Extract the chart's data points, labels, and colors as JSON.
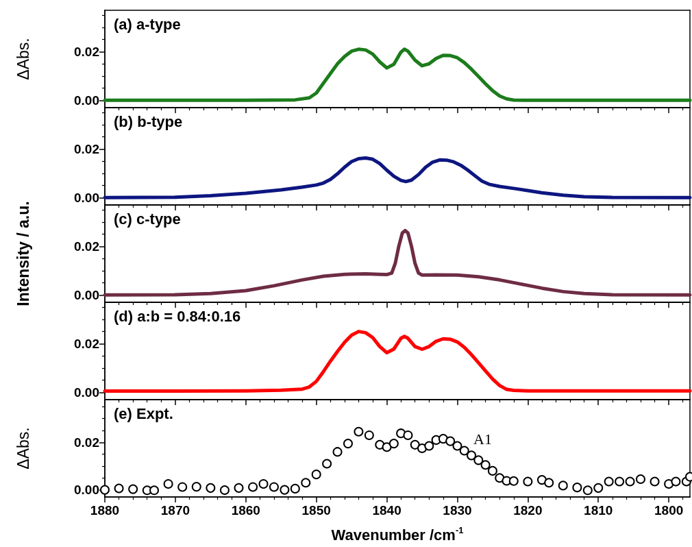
{
  "chart_data": [
    {
      "type": "line",
      "title": "(a) a-type",
      "ylabel": "ΔAbs.",
      "tick_labels": "y",
      "xlim": [
        1880,
        1797
      ],
      "ylim": [
        -0.003,
        0.037
      ],
      "xticks": [
        1880,
        1870,
        1860,
        1850,
        1840,
        1830,
        1820,
        1810,
        1800,
        {
          "value": 1878,
          "label": null
        },
        {
          "value": 1876,
          "label": null
        },
        {
          "value": 1874,
          "label": null
        },
        {
          "value": 1872,
          "label": null
        },
        {
          "value": 1868,
          "label": null
        },
        {
          "value": 1866,
          "label": null
        },
        {
          "value": 1864,
          "label": null
        },
        {
          "value": 1862,
          "label": null
        },
        {
          "value": 1858,
          "label": null
        },
        {
          "value": 1856,
          "label": null
        },
        {
          "value": 1854,
          "label": null
        },
        {
          "value": 1852,
          "label": null
        },
        {
          "value": 1848,
          "label": null
        },
        {
          "value": 1846,
          "label": null
        },
        {
          "value": 1844,
          "label": null
        },
        {
          "value": 1842,
          "label": null
        },
        {
          "value": 1838,
          "label": null
        },
        {
          "value": 1836,
          "label": null
        },
        {
          "value": 1834,
          "label": null
        },
        {
          "value": 1832,
          "label": null
        },
        {
          "value": 1828,
          "label": null
        },
        {
          "value": 1826,
          "label": null
        },
        {
          "value": 1824,
          "label": null
        },
        {
          "value": 1822,
          "label": null
        },
        {
          "value": 1818,
          "label": null
        },
        {
          "value": 1816,
          "label": null
        },
        {
          "value": 1814,
          "label": null
        },
        {
          "value": 1812,
          "label": null
        },
        {
          "value": 1808,
          "label": null
        },
        {
          "value": 1806,
          "label": null
        },
        {
          "value": 1804,
          "label": null
        },
        {
          "value": 1802,
          "label": null
        },
        {
          "value": 1798,
          "label": null
        }
      ],
      "yticks": [
        {
          "value": 0,
          "label": "0.00"
        },
        {
          "value": 0.02,
          "label": "0.02"
        },
        {
          "value": 0.005,
          "label": null
        },
        {
          "value": 0.01,
          "label": null
        },
        {
          "value": 0.015,
          "label": null
        },
        {
          "value": 0.025,
          "label": null
        },
        {
          "value": 0.03,
          "label": null
        },
        {
          "value": 0.035,
          "label": null
        }
      ],
      "x": [
        1880,
        1860,
        1853,
        1851,
        1850,
        1849,
        1848,
        1847,
        1846,
        1845,
        1844,
        1843,
        1842,
        1841,
        1840,
        1839,
        1838,
        1837.5,
        1837,
        1836,
        1835,
        1834,
        1833,
        1832,
        1831,
        1830,
        1829,
        1828,
        1827,
        1826,
        1825,
        1824,
        1823,
        1822,
        1820,
        1797
      ],
      "series": [
        {
          "color": "#1c7c1c",
          "values": [
            0,
            0,
            0.0002,
            0.001,
            0.003,
            0.007,
            0.011,
            0.015,
            0.018,
            0.0202,
            0.021,
            0.0207,
            0.019,
            0.0158,
            0.0133,
            0.0148,
            0.0198,
            0.021,
            0.0202,
            0.0165,
            0.0142,
            0.015,
            0.0172,
            0.0185,
            0.0184,
            0.0175,
            0.0155,
            0.0128,
            0.0098,
            0.0068,
            0.004,
            0.0018,
            0.0006,
            0.0001,
            0,
            0
          ]
        }
      ]
    },
    {
      "type": "line",
      "title": "(b) b-type",
      "tick_labels": "y",
      "xlim": [
        1880,
        1797
      ],
      "ylim": [
        -0.003,
        0.037
      ],
      "xticks": [
        1880,
        1870,
        1860,
        1850,
        1840,
        1830,
        1820,
        1810,
        1800,
        {
          "value": 1878,
          "label": null
        },
        {
          "value": 1876,
          "label": null
        },
        {
          "value": 1874,
          "label": null
        },
        {
          "value": 1872,
          "label": null
        },
        {
          "value": 1868,
          "label": null
        },
        {
          "value": 1866,
          "label": null
        },
        {
          "value": 1864,
          "label": null
        },
        {
          "value": 1862,
          "label": null
        },
        {
          "value": 1858,
          "label": null
        },
        {
          "value": 1856,
          "label": null
        },
        {
          "value": 1854,
          "label": null
        },
        {
          "value": 1852,
          "label": null
        },
        {
          "value": 1848,
          "label": null
        },
        {
          "value": 1846,
          "label": null
        },
        {
          "value": 1844,
          "label": null
        },
        {
          "value": 1842,
          "label": null
        },
        {
          "value": 1838,
          "label": null
        },
        {
          "value": 1836,
          "label": null
        },
        {
          "value": 1834,
          "label": null
        },
        {
          "value": 1832,
          "label": null
        },
        {
          "value": 1828,
          "label": null
        },
        {
          "value": 1826,
          "label": null
        },
        {
          "value": 1824,
          "label": null
        },
        {
          "value": 1822,
          "label": null
        },
        {
          "value": 1818,
          "label": null
        },
        {
          "value": 1816,
          "label": null
        },
        {
          "value": 1814,
          "label": null
        },
        {
          "value": 1812,
          "label": null
        },
        {
          "value": 1808,
          "label": null
        },
        {
          "value": 1806,
          "label": null
        },
        {
          "value": 1804,
          "label": null
        },
        {
          "value": 1802,
          "label": null
        },
        {
          "value": 1798,
          "label": null
        }
      ],
      "yticks": [
        {
          "value": 0,
          "label": "0.00"
        },
        {
          "value": 0.02,
          "label": "0.02"
        },
        {
          "value": 0.005,
          "label": null
        },
        {
          "value": 0.01,
          "label": null
        },
        {
          "value": 0.015,
          "label": null
        },
        {
          "value": 0.025,
          "label": null
        },
        {
          "value": 0.03,
          "label": null
        },
        {
          "value": 0.035,
          "label": null
        }
      ],
      "x": [
        1880,
        1870,
        1865,
        1860,
        1855,
        1852,
        1850,
        1849,
        1848,
        1847,
        1846,
        1845,
        1844,
        1843,
        1842,
        1841,
        1840,
        1839,
        1838,
        1837.3,
        1836.5,
        1835.5,
        1834.5,
        1833.5,
        1832.5,
        1831.5,
        1830.5,
        1829.5,
        1828.5,
        1827.5,
        1826.5,
        1825.5,
        1824,
        1822,
        1820,
        1818,
        1815,
        1812,
        1808,
        1797
      ],
      "series": [
        {
          "color": "#0d1680",
          "values": [
            0,
            0.0002,
            0.0008,
            0.0018,
            0.0032,
            0.0043,
            0.0052,
            0.006,
            0.0075,
            0.0098,
            0.0125,
            0.0148,
            0.016,
            0.0163,
            0.0158,
            0.014,
            0.0113,
            0.0088,
            0.0071,
            0.0066,
            0.0072,
            0.0095,
            0.0125,
            0.0146,
            0.0155,
            0.0154,
            0.0147,
            0.0133,
            0.0113,
            0.009,
            0.0068,
            0.0055,
            0.0046,
            0.0038,
            0.0029,
            0.002,
            0.001,
            0.0004,
            0.0001,
            0
          ]
        }
      ]
    },
    {
      "type": "line",
      "title": "(c) c-type",
      "ylabel": "Intensity / a.u.",
      "tick_labels": "y",
      "xlim": [
        1880,
        1797
      ],
      "ylim": [
        -0.003,
        0.037
      ],
      "xticks": [
        1880,
        1870,
        1860,
        1850,
        1840,
        1830,
        1820,
        1810,
        1800,
        {
          "value": 1878,
          "label": null
        },
        {
          "value": 1876,
          "label": null
        },
        {
          "value": 1874,
          "label": null
        },
        {
          "value": 1872,
          "label": null
        },
        {
          "value": 1868,
          "label": null
        },
        {
          "value": 1866,
          "label": null
        },
        {
          "value": 1864,
          "label": null
        },
        {
          "value": 1862,
          "label": null
        },
        {
          "value": 1858,
          "label": null
        },
        {
          "value": 1856,
          "label": null
        },
        {
          "value": 1854,
          "label": null
        },
        {
          "value": 1852,
          "label": null
        },
        {
          "value": 1848,
          "label": null
        },
        {
          "value": 1846,
          "label": null
        },
        {
          "value": 1844,
          "label": null
        },
        {
          "value": 1842,
          "label": null
        },
        {
          "value": 1838,
          "label": null
        },
        {
          "value": 1836,
          "label": null
        },
        {
          "value": 1834,
          "label": null
        },
        {
          "value": 1832,
          "label": null
        },
        {
          "value": 1828,
          "label": null
        },
        {
          "value": 1826,
          "label": null
        },
        {
          "value": 1824,
          "label": null
        },
        {
          "value": 1822,
          "label": null
        },
        {
          "value": 1818,
          "label": null
        },
        {
          "value": 1816,
          "label": null
        },
        {
          "value": 1814,
          "label": null
        },
        {
          "value": 1812,
          "label": null
        },
        {
          "value": 1808,
          "label": null
        },
        {
          "value": 1806,
          "label": null
        },
        {
          "value": 1804,
          "label": null
        },
        {
          "value": 1802,
          "label": null
        },
        {
          "value": 1798,
          "label": null
        }
      ],
      "yticks": [
        {
          "value": 0,
          "label": "0.00"
        },
        {
          "value": 0.02,
          "label": "0.02"
        },
        {
          "value": 0.005,
          "label": null
        },
        {
          "value": 0.01,
          "label": null
        },
        {
          "value": 0.015,
          "label": null
        },
        {
          "value": 0.025,
          "label": null
        },
        {
          "value": 0.03,
          "label": null
        },
        {
          "value": 0.035,
          "label": null
        }
      ],
      "x": [
        1880,
        1870,
        1865,
        1860,
        1856,
        1852,
        1849,
        1846,
        1843,
        1841,
        1840,
        1839.3,
        1838.8,
        1838.3,
        1837.8,
        1837.4,
        1837,
        1836.5,
        1836,
        1835.5,
        1835,
        1833,
        1830,
        1827,
        1824,
        1821,
        1818,
        1815,
        1812,
        1808,
        1797
      ],
      "series": [
        {
          "color": "#6e2c44",
          "values": [
            0,
            0.0001,
            0.0006,
            0.0018,
            0.0038,
            0.0062,
            0.0077,
            0.0085,
            0.0087,
            0.0085,
            0.0084,
            0.009,
            0.013,
            0.02,
            0.0255,
            0.0265,
            0.0255,
            0.02,
            0.013,
            0.009,
            0.0082,
            0.0083,
            0.0082,
            0.0075,
            0.0062,
            0.0045,
            0.0028,
            0.0014,
            0.0006,
            0.0001,
            0
          ]
        }
      ]
    },
    {
      "type": "line",
      "title": "(d) a:b = 0.84:0.16",
      "tick_labels": "y",
      "xlim": [
        1880,
        1797
      ],
      "ylim": [
        -0.003,
        0.037
      ],
      "xticks": [
        1880,
        1870,
        1860,
        1850,
        1840,
        1830,
        1820,
        1810,
        1800,
        {
          "value": 1878,
          "label": null
        },
        {
          "value": 1876,
          "label": null
        },
        {
          "value": 1874,
          "label": null
        },
        {
          "value": 1872,
          "label": null
        },
        {
          "value": 1868,
          "label": null
        },
        {
          "value": 1866,
          "label": null
        },
        {
          "value": 1864,
          "label": null
        },
        {
          "value": 1862,
          "label": null
        },
        {
          "value": 1858,
          "label": null
        },
        {
          "value": 1856,
          "label": null
        },
        {
          "value": 1854,
          "label": null
        },
        {
          "value": 1852,
          "label": null
        },
        {
          "value": 1848,
          "label": null
        },
        {
          "value": 1846,
          "label": null
        },
        {
          "value": 1844,
          "label": null
        },
        {
          "value": 1842,
          "label": null
        },
        {
          "value": 1838,
          "label": null
        },
        {
          "value": 1836,
          "label": null
        },
        {
          "value": 1834,
          "label": null
        },
        {
          "value": 1832,
          "label": null
        },
        {
          "value": 1828,
          "label": null
        },
        {
          "value": 1826,
          "label": null
        },
        {
          "value": 1824,
          "label": null
        },
        {
          "value": 1822,
          "label": null
        },
        {
          "value": 1818,
          "label": null
        },
        {
          "value": 1816,
          "label": null
        },
        {
          "value": 1814,
          "label": null
        },
        {
          "value": 1812,
          "label": null
        },
        {
          "value": 1808,
          "label": null
        },
        {
          "value": 1806,
          "label": null
        },
        {
          "value": 1804,
          "label": null
        },
        {
          "value": 1802,
          "label": null
        },
        {
          "value": 1798,
          "label": null
        }
      ],
      "yticks": [
        {
          "value": 0,
          "label": "0.00"
        },
        {
          "value": 0.02,
          "label": "0.02"
        },
        {
          "value": 0.005,
          "label": null
        },
        {
          "value": 0.01,
          "label": null
        },
        {
          "value": 0.015,
          "label": null
        },
        {
          "value": 0.025,
          "label": null
        },
        {
          "value": 0.03,
          "label": null
        },
        {
          "value": 0.035,
          "label": null
        }
      ],
      "x": [
        1880,
        1860,
        1855,
        1852,
        1851,
        1850,
        1849,
        1848,
        1847,
        1846,
        1845,
        1844,
        1843,
        1842,
        1841,
        1840,
        1839,
        1838,
        1837.5,
        1837,
        1836,
        1835,
        1834,
        1833,
        1832,
        1831,
        1830,
        1829,
        1828,
        1827,
        1826,
        1825,
        1824,
        1823,
        1822,
        1820,
        1797
      ],
      "series": [
        {
          "color": "#ff0000",
          "values": [
            0.0005,
            0.0006,
            0.0009,
            0.0013,
            0.0022,
            0.0045,
            0.0085,
            0.0128,
            0.0168,
            0.0205,
            0.0235,
            0.025,
            0.0245,
            0.0225,
            0.0188,
            0.0163,
            0.0178,
            0.0222,
            0.023,
            0.0222,
            0.0188,
            0.0177,
            0.0188,
            0.021,
            0.022,
            0.0218,
            0.0207,
            0.0185,
            0.0155,
            0.0122,
            0.0088,
            0.0055,
            0.0028,
            0.0012,
            0.0008,
            0.0006,
            0.0006
          ]
        }
      ]
    },
    {
      "type": "scatter",
      "title": "(e) Expt.",
      "ylabel": "ΔAbs.",
      "xlabel": "Wavenumber /cm$^{-1}$",
      "marker": "circle",
      "xlim": [
        1880,
        1797
      ],
      "ylim": [
        -0.003,
        0.038
      ],
      "xticks": [
        1880,
        1870,
        1860,
        1850,
        1840,
        1830,
        1820,
        1810,
        1800,
        {
          "value": 1878,
          "label": null
        },
        {
          "value": 1876,
          "label": null
        },
        {
          "value": 1874,
          "label": null
        },
        {
          "value": 1872,
          "label": null
        },
        {
          "value": 1868,
          "label": null
        },
        {
          "value": 1866,
          "label": null
        },
        {
          "value": 1864,
          "label": null
        },
        {
          "value": 1862,
          "label": null
        },
        {
          "value": 1858,
          "label": null
        },
        {
          "value": 1856,
          "label": null
        },
        {
          "value": 1854,
          "label": null
        },
        {
          "value": 1852,
          "label": null
        },
        {
          "value": 1848,
          "label": null
        },
        {
          "value": 1846,
          "label": null
        },
        {
          "value": 1844,
          "label": null
        },
        {
          "value": 1842,
          "label": null
        },
        {
          "value": 1838,
          "label": null
        },
        {
          "value": 1836,
          "label": null
        },
        {
          "value": 1834,
          "label": null
        },
        {
          "value": 1832,
          "label": null
        },
        {
          "value": 1828,
          "label": null
        },
        {
          "value": 1826,
          "label": null
        },
        {
          "value": 1824,
          "label": null
        },
        {
          "value": 1822,
          "label": null
        },
        {
          "value": 1818,
          "label": null
        },
        {
          "value": 1816,
          "label": null
        },
        {
          "value": 1814,
          "label": null
        },
        {
          "value": 1812,
          "label": null
        },
        {
          "value": 1808,
          "label": null
        },
        {
          "value": 1806,
          "label": null
        },
        {
          "value": 1804,
          "label": null
        },
        {
          "value": 1802,
          "label": null
        },
        {
          "value": 1798,
          "label": null
        }
      ],
      "yticks": [
        {
          "value": 0,
          "label": "0.00"
        },
        {
          "value": 0.02,
          "label": "0.02"
        },
        {
          "value": 0.005,
          "label": null
        },
        {
          "value": 0.01,
          "label": null
        },
        {
          "value": 0.015,
          "label": null
        },
        {
          "value": 0.025,
          "label": null
        },
        {
          "value": 0.03,
          "label": null
        },
        {
          "value": 0.035,
          "label": null
        }
      ],
      "annotations": [
        "A1"
      ],
      "x": [
        1880,
        1878,
        1876,
        1874,
        1873,
        1871,
        1869,
        1867,
        1865,
        1863,
        1861,
        1859,
        1857.5,
        1856,
        1854.5,
        1853,
        1851.5,
        1850,
        1848.5,
        1847,
        1845.5,
        1844,
        1842.5,
        1841,
        1840,
        1839,
        1838,
        1837,
        1836,
        1835,
        1834,
        1833,
        1832,
        1831,
        1830,
        1829,
        1828,
        1827,
        1826,
        1825,
        1824,
        1823,
        1822,
        1820,
        1818,
        1817,
        1815,
        1813,
        1811.5,
        1810,
        1808.5,
        1807,
        1805.5,
        1804,
        1802,
        1800,
        1799,
        1797.5,
        1797
      ],
      "series": [
        {
          "color": "#000000",
          "values": [
            0,
            0.0006,
            0.0003,
            -0.0002,
            -0.0002,
            0.0025,
            0.0012,
            0.0013,
            0.0008,
            -0.0001,
            0.0008,
            0.0012,
            0.0025,
            0.0012,
            0,
            0.0005,
            0.003,
            0.0065,
            0.011,
            0.016,
            0.0195,
            0.0245,
            0.023,
            0.019,
            0.018,
            0.0195,
            0.0238,
            0.023,
            0.019,
            0.0175,
            0.0185,
            0.021,
            0.0215,
            0.0205,
            0.0185,
            0.0165,
            0.0145,
            0.0125,
            0.0105,
            0.008,
            0.005,
            0.0038,
            0.0037,
            0.0035,
            0.0042,
            0.003,
            0.0018,
            0.001,
            -0.0002,
            0.0008,
            0.0035,
            0.0035,
            0.0035,
            0.0045,
            0.0035,
            0.0025,
            0.0035,
            0.0035,
            0.0055
          ]
        }
      ]
    }
  ]
}
